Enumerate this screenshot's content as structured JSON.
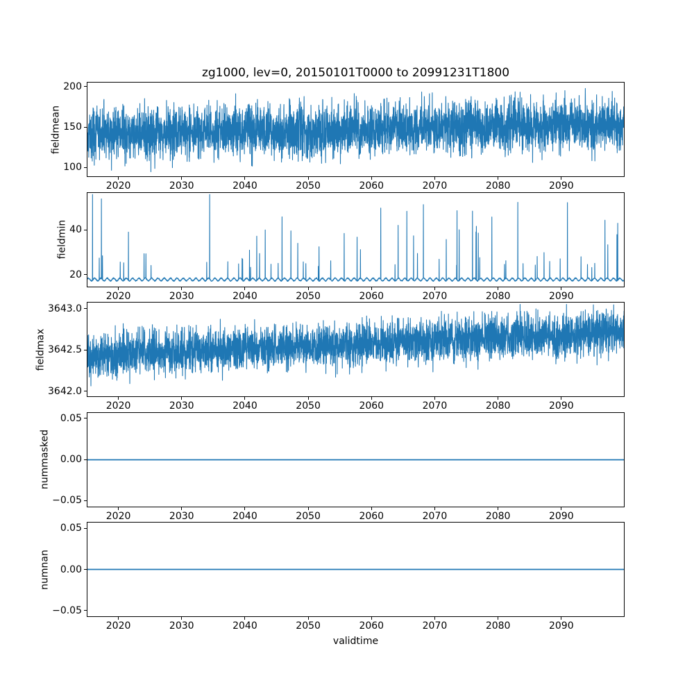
{
  "figure": {
    "title": "zg1000, lev=0, 20150101T0000 to 20991231T1800",
    "xlabel": "validtime",
    "background_color": "#ffffff",
    "line_color": "#1f77b4",
    "axis_color": "#000000"
  },
  "chart_data": [
    {
      "type": "line",
      "title": "",
      "ylabel": "fieldmean",
      "x_range": [
        2015,
        2100
      ],
      "x_tick_values": [
        2020,
        2030,
        2040,
        2050,
        2060,
        2070,
        2080,
        2090
      ],
      "x_tick_labels": [
        "2020",
        "2030",
        "2040",
        "2050",
        "2060",
        "2070",
        "2080",
        "2090"
      ],
      "ylim": [
        88,
        206
      ],
      "y_tick_values": [
        100,
        150,
        200
      ],
      "y_tick_labels": [
        "100",
        "150",
        "200"
      ],
      "grid": false,
      "legend": null,
      "series": [
        {
          "name": "fieldmean",
          "gen": "gaussian-noise",
          "n": 4000,
          "mean_start": 141,
          "mean_end": 153,
          "sigma": 16,
          "clip_min": 94,
          "clip_max": 200
        }
      ]
    },
    {
      "type": "line",
      "title": "",
      "ylabel": "fieldmin",
      "x_range": [
        2015,
        2100
      ],
      "x_tick_values": [
        2020,
        2030,
        2040,
        2050,
        2060,
        2070,
        2080,
        2090
      ],
      "x_tick_labels": [
        "2020",
        "2030",
        "2040",
        "2050",
        "2060",
        "2070",
        "2080",
        "2090"
      ],
      "ylim": [
        14.5,
        57
      ],
      "y_tick_values": [
        20,
        40
      ],
      "y_tick_labels": [
        "20",
        "40"
      ],
      "grid": false,
      "legend": null,
      "series": [
        {
          "name": "fieldmin",
          "gen": "baseline-spikes",
          "n": 4000,
          "baseline": 17.4,
          "osc_amp": 1.2,
          "noise": 0.5,
          "spike_prob": 0.02,
          "spike_min": 6,
          "spike_max": 40,
          "clip_max": 56
        }
      ]
    },
    {
      "type": "line",
      "title": "",
      "ylabel": "fieldmax",
      "x_range": [
        2015,
        2100
      ],
      "x_tick_values": [
        2020,
        2030,
        2040,
        2050,
        2060,
        2070,
        2080,
        2090
      ],
      "x_tick_labels": [
        "2020",
        "2030",
        "2040",
        "2050",
        "2060",
        "2070",
        "2080",
        "2090"
      ],
      "ylim": [
        3641.93,
        3643.08
      ],
      "y_tick_values": [
        3642.0,
        3642.5,
        3643.0
      ],
      "y_tick_labels": [
        "3642.0",
        "3642.5",
        "3643.0"
      ],
      "grid": false,
      "legend": null,
      "series": [
        {
          "name": "fieldmax",
          "gen": "gaussian-noise",
          "n": 4000,
          "mean_start": 3642.42,
          "mean_end": 3642.72,
          "sigma": 0.13,
          "clip_min": 3641.98,
          "clip_max": 3643.05
        }
      ]
    },
    {
      "type": "line",
      "title": "",
      "ylabel": "nummasked",
      "x_range": [
        2015,
        2100
      ],
      "x_tick_values": [
        2020,
        2030,
        2040,
        2050,
        2060,
        2070,
        2080,
        2090
      ],
      "x_tick_labels": [
        "2020",
        "2030",
        "2040",
        "2050",
        "2060",
        "2070",
        "2080",
        "2090"
      ],
      "ylim": [
        -0.058,
        0.058
      ],
      "y_tick_values": [
        -0.05,
        0,
        0.05
      ],
      "y_tick_labels": [
        "−0.05",
        "0.00",
        "0.05"
      ],
      "grid": false,
      "legend": null,
      "series": [
        {
          "name": "nummasked",
          "gen": "constant",
          "value": 0
        }
      ]
    },
    {
      "type": "line",
      "title": "",
      "ylabel": "numnan",
      "x_range": [
        2015,
        2100
      ],
      "x_tick_values": [
        2020,
        2030,
        2040,
        2050,
        2060,
        2070,
        2080,
        2090
      ],
      "x_tick_labels": [
        "2020",
        "2030",
        "2040",
        "2050",
        "2060",
        "2070",
        "2080",
        "2090"
      ],
      "ylim": [
        -0.058,
        0.058
      ],
      "y_tick_values": [
        -0.05,
        0,
        0.05
      ],
      "y_tick_labels": [
        "−0.05",
        "0.00",
        "0.05"
      ],
      "grid": false,
      "legend": null,
      "series": [
        {
          "name": "numnan",
          "gen": "constant",
          "value": 0
        }
      ]
    }
  ]
}
